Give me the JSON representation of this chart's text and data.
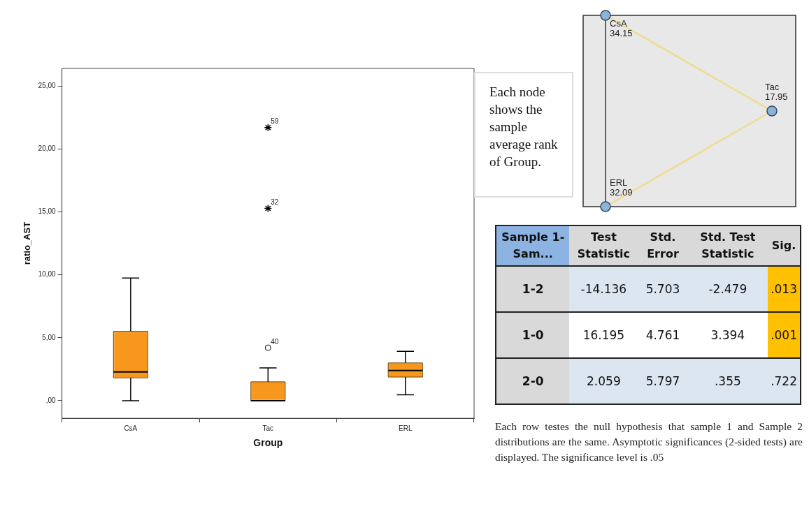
{
  "chart_data": [
    {
      "type": "box",
      "xlabel": "Group",
      "ylabel": "ratio_AST",
      "categories": [
        "CsA",
        "Tac",
        "ERL"
      ],
      "color": "#f7981d",
      "grid": false,
      "ylim": [
        -1.4,
        26.4
      ],
      "yticks": [
        {
          "value": 0,
          "label": ",00"
        },
        {
          "value": 5,
          "label": "5,00"
        },
        {
          "value": 10,
          "label": "10,00"
        },
        {
          "value": 15,
          "label": "15,00"
        },
        {
          "value": 20,
          "label": "20,00"
        },
        {
          "value": 25,
          "label": "25,00"
        }
      ],
      "boxes": [
        {
          "low": 0,
          "q1": 1.81,
          "median": 2.28,
          "q3": 5.51,
          "high": 9.74
        },
        {
          "low": 0,
          "q1": 0,
          "median": 0,
          "q3": 1.5,
          "high": 2.6
        },
        {
          "low": 0.47,
          "q1": 1.88,
          "median": 2.4,
          "q3": 3.0,
          "high": 3.92
        }
      ],
      "series": [
        {
          "type": "scatter",
          "marker": "cross",
          "color": "#000000",
          "x": [
            "Tac",
            "Tac"
          ],
          "values": [
            21.7,
            15.28
          ]
        },
        {
          "type": "scatter",
          "marker": "circle",
          "color": "#000000",
          "x": [
            "Tac"
          ],
          "values": [
            4.21
          ]
        }
      ],
      "annotations": [
        {
          "text": "59",
          "x": "Tac",
          "y": 21.7
        },
        {
          "text": "32",
          "x": "Tac",
          "y": 15.28
        },
        {
          "text": "40",
          "x": "Tac",
          "y": 4.21
        }
      ]
    },
    {
      "type": "other",
      "categories": [
        "CsA",
        "Tac",
        "ERL"
      ],
      "values": [
        34.15,
        17.95,
        32.09
      ],
      "data_labels": true,
      "annotations": [
        "Each node shows the sample average rank of Group."
      ]
    },
    {
      "type": "other",
      "categories": [
        "Sample 1-Sam...",
        "Test Statistic",
        "Std. Error",
        "Std. Test Statistic",
        "Sig."
      ],
      "cell_labels": [
        [
          "1-2",
          "-14.136",
          "5.703",
          "-2.479",
          ".013"
        ],
        [
          "1-0",
          "16.195",
          "4.761",
          "3.394",
          ".001"
        ],
        [
          "2-0",
          "2.059",
          "5.797",
          ".355",
          ".722"
        ]
      ],
      "annotations": [
        "Each row testes the null hypothesis that sample 1 and Sample 2 distributions are the same. Asymptotic significances (2-sided tests) are displayed. The significance level is .05"
      ]
    }
  ]
}
